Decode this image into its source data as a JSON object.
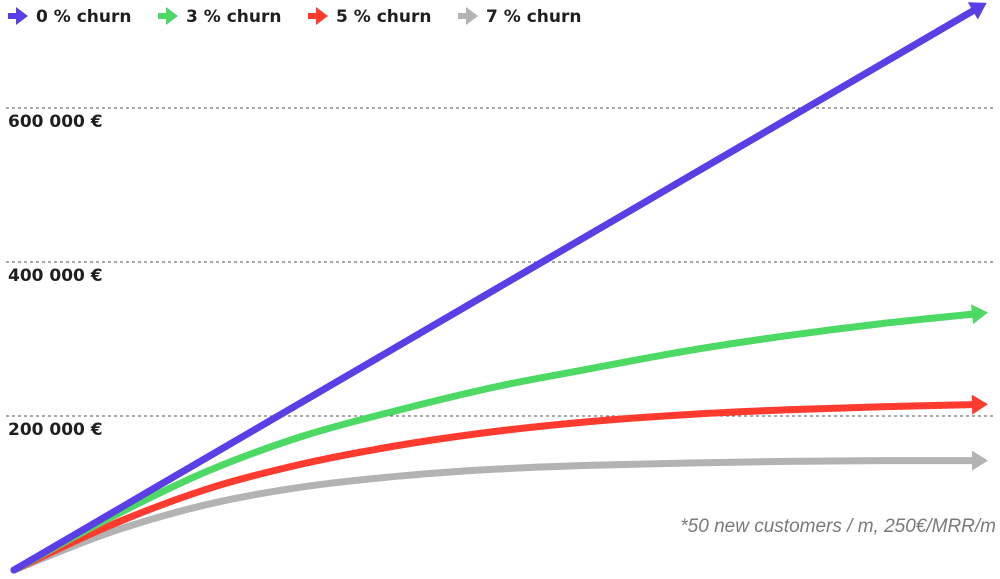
{
  "chart_data": {
    "type": "line",
    "title": "",
    "xlabel": "",
    "ylabel": "",
    "ylim": [
      0,
      740000
    ],
    "grid": true,
    "legend_position": "top-left",
    "y_ticks": [
      {
        "value": 200000,
        "label": "200 000 €"
      },
      {
        "value": 400000,
        "label": "400 000 €"
      },
      {
        "value": 600000,
        "label": "600 000 €"
      }
    ],
    "x": [
      0,
      6,
      12,
      18,
      24,
      30,
      36,
      42,
      48,
      54,
      60
    ],
    "series": [
      {
        "name": "0 % churn",
        "color": "#5b3ee6",
        "values": [
          0,
          73000,
          146000,
          219000,
          292000,
          365000,
          438000,
          511000,
          584000,
          657000,
          730000
        ]
      },
      {
        "name": "3 % churn",
        "color": "#4cd964",
        "values": [
          0,
          68000,
          128000,
          174000,
          208000,
          238000,
          262000,
          285000,
          304000,
          320000,
          333000
        ]
      },
      {
        "name": "5 % churn",
        "color": "#ff3b30",
        "values": [
          0,
          58000,
          105000,
          138000,
          162000,
          180000,
          193000,
          202000,
          208000,
          212000,
          215000
        ]
      },
      {
        "name": "7 % churn",
        "color": "#b3b3b3",
        "values": [
          0,
          49000,
          85000,
          108000,
          122000,
          131000,
          136000,
          139000,
          141000,
          142000,
          142000
        ]
      }
    ],
    "annotation": "*50 new customers / m, 250€/MRR/m"
  }
}
